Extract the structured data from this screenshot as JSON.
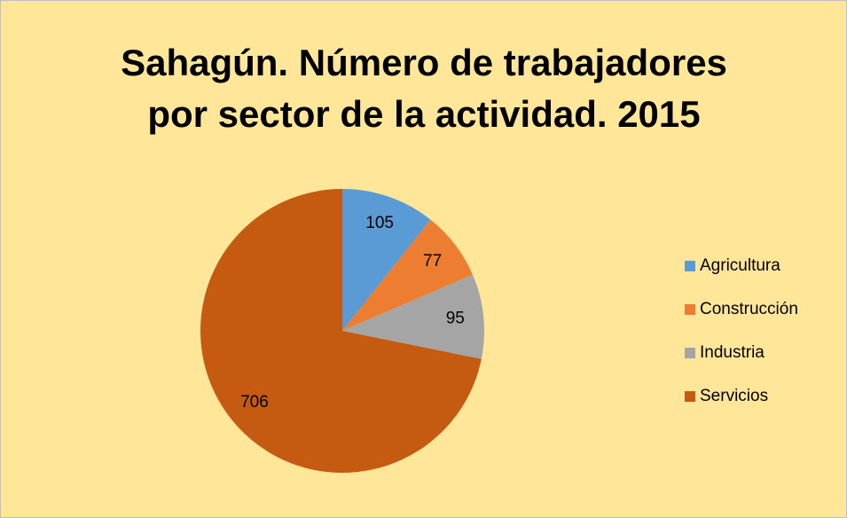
{
  "chart_data": {
    "type": "pie",
    "title": [
      "Sahagún. Número de trabajadores",
      "por sector de la actividad. 2015"
    ],
    "categories": [
      "Agricultura",
      "Construcción",
      "Industria",
      "Servicios"
    ],
    "values": [
      105,
      77,
      95,
      706
    ],
    "colors": [
      "#5b9bd5",
      "#ed7d31",
      "#a5a5a5",
      "#c55a11"
    ],
    "legend": "right"
  }
}
